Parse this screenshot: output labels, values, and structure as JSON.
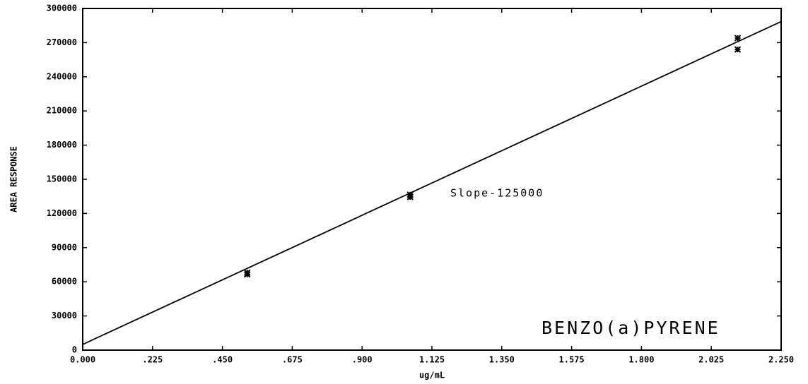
{
  "chart_data": {
    "type": "scatter",
    "y_label": "AREA RESPONSE",
    "x_label": "ug/mL",
    "annotation": "Slope-125000",
    "compound_label": "BENZO(a)PYRENE",
    "color": "#000000",
    "points": {
      "x": [
        0.53,
        0.53,
        1.055,
        1.055,
        2.11,
        2.11
      ],
      "values": [
        68000,
        66500,
        136500,
        134500,
        274000,
        264000
      ]
    },
    "fit_line": {
      "x": [
        0,
        2.25
      ],
      "values": [
        5000,
        288500
      ]
    },
    "xlim": [
      0,
      2.25
    ],
    "xticks": [
      {
        "value": 0,
        "label": "0.000"
      },
      {
        "value": 0.225,
        "label": ".225"
      },
      {
        "value": 0.45,
        "label": ".450"
      },
      {
        "value": 0.675,
        "label": ".675"
      },
      {
        "value": 0.9,
        "label": ".900"
      },
      1.125,
      {
        "value": 1.35,
        "label": "1.350"
      },
      1.575,
      {
        "value": 1.8,
        "label": "1.800"
      },
      2.025,
      {
        "value": 2.25,
        "label": "2.250"
      }
    ],
    "ylim": [
      0,
      300000
    ],
    "yticks": [
      0,
      30000,
      60000,
      90000,
      120000,
      150000,
      180000,
      210000,
      240000,
      270000,
      300000
    ]
  }
}
